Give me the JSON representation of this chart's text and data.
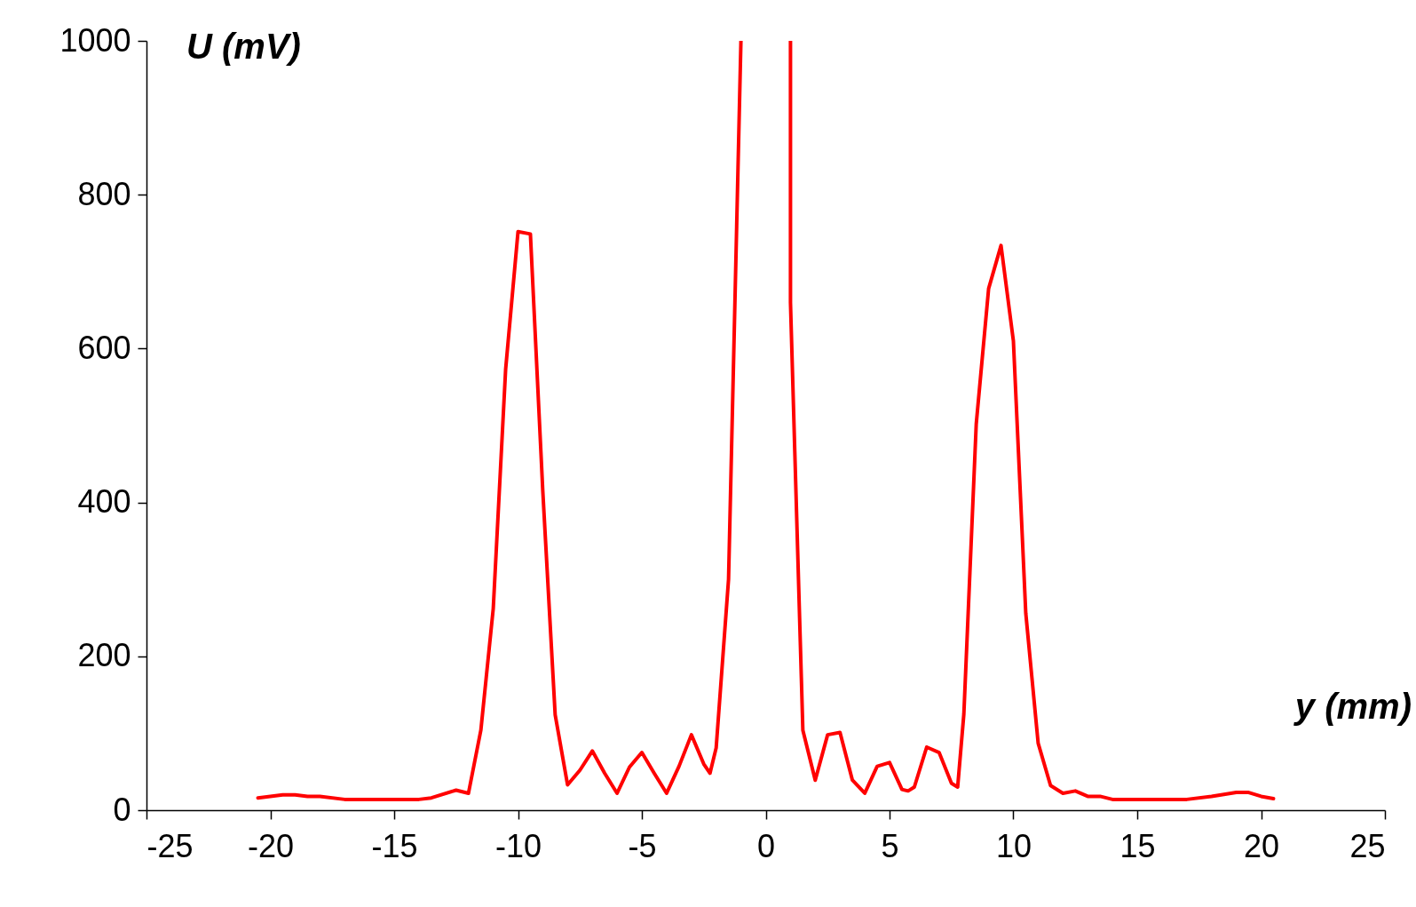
{
  "chart_data": {
    "type": "line",
    "xlabel": "y (mm)",
    "ylabel": "U (mV)",
    "x": [
      -20.5,
      -19.5,
      -19,
      -18.5,
      -18,
      -17,
      -14,
      -13.5,
      -12.5,
      -12,
      -11.5,
      -11,
      -10.5,
      -10,
      -9.5,
      -9,
      -8.5,
      -8,
      -7.5,
      -7,
      -6.5,
      -6,
      -5.5,
      -5,
      -4.5,
      -4,
      -3.5,
      -3,
      -2.5,
      -2.25,
      -2,
      -1.5,
      -1,
      -0.5,
      0,
      0.5,
      1,
      1,
      1.5,
      2,
      2.5,
      3,
      3.5,
      4,
      4.5,
      5,
      5.5,
      5.75,
      6,
      6.5,
      7,
      7.5,
      7.75,
      8,
      8.5,
      9,
      9.5,
      10,
      10.5,
      11,
      11.5,
      12,
      12.5,
      13,
      13.5,
      14,
      17,
      18,
      19,
      19.5,
      20,
      20.5
    ],
    "series": [
      {
        "color": "#ff0000",
        "values": [
          16,
          20,
          20,
          18,
          18,
          14,
          14,
          16,
          26,
          22,
          104,
          262,
          573,
          752,
          749,
          415,
          124,
          33,
          52,
          77,
          48,
          22,
          56,
          75,
          48,
          22,
          57,
          98,
          60,
          48,
          81,
          300,
          1000,
          null,
          null,
          null,
          1000,
          660,
          104,
          39,
          98,
          101,
          39,
          22,
          57,
          62,
          27,
          25,
          30,
          82,
          75,
          35,
          30,
          125,
          502,
          678,
          734,
          610,
          256,
          87,
          32,
          22,
          25,
          18,
          18,
          14,
          14,
          18,
          23,
          23,
          18,
          15
        ]
      }
    ],
    "xlim": [
      -25,
      25
    ],
    "xticks": [
      -25,
      -20,
      -15,
      -10,
      -5,
      0,
      5,
      10,
      15,
      20,
      25
    ],
    "ylim": [
      0,
      1000
    ],
    "yticks": [
      0,
      200,
      400,
      600,
      800,
      1000
    ],
    "grid": false,
    "marker": "none",
    "line_style": "solid"
  }
}
